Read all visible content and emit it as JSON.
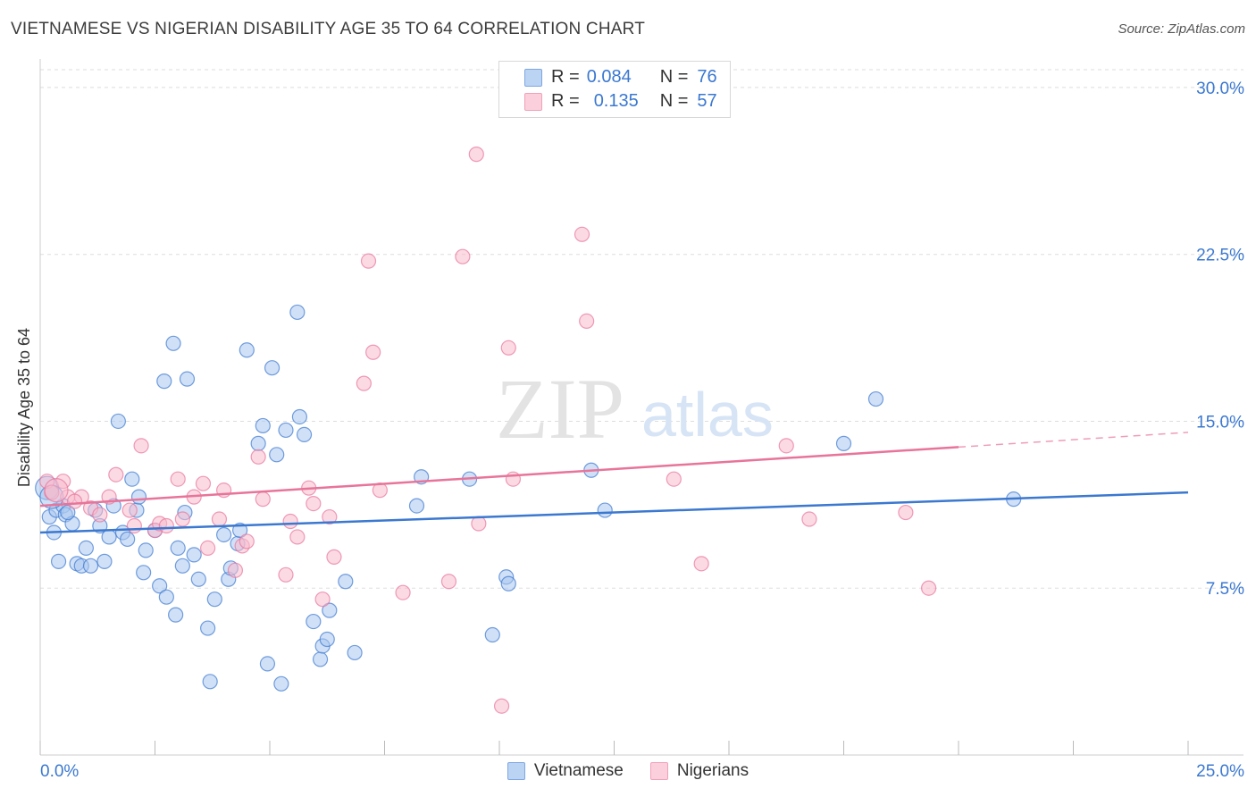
{
  "title": "VIETNAMESE VS NIGERIAN DISABILITY AGE 35 TO 64 CORRELATION CHART",
  "source": "Source: ZipAtlas.com",
  "watermark": {
    "zip": "ZIP",
    "atlas": "atlas"
  },
  "stats": {
    "row1": {
      "r_label": "R =",
      "r_value": "0.084",
      "n_label": "N =",
      "n_value": "76"
    },
    "row2": {
      "r_label": "R =",
      "r_value": "0.135",
      "n_label": "N =",
      "n_value": "57"
    }
  },
  "legend": {
    "series1": "Vietnamese",
    "series2": "Nigerians"
  },
  "chart_data": {
    "type": "scatter",
    "title": "VIETNAMESE VS NIGERIAN DISABILITY AGE 35 TO 64 CORRELATION CHART",
    "xlabel": "",
    "ylabel": "Disability Age 35 to 64",
    "xlim": [
      0,
      25
    ],
    "ylim": [
      0,
      30.8
    ],
    "x_tick_labels": [
      "0.0%",
      "25.0%"
    ],
    "y_ticks": [
      7.5,
      15.0,
      22.5,
      30.0
    ],
    "y_tick_labels": [
      "7.5%",
      "15.0%",
      "22.5%",
      "30.0%"
    ],
    "colors": {
      "blue": "#3b78d0",
      "blue_fill": "#a9c6ef",
      "pink": "#e8749a",
      "pink_fill": "#f7bccd",
      "tick_text": "#3b78d0"
    },
    "series": [
      {
        "name": "Vietnamese",
        "color": "#3b78d0",
        "fill": "#a9c6ef",
        "trend": {
          "x0": 0,
          "y0": 10.0,
          "x1": 25,
          "y1": 11.8,
          "dash_from": null
        },
        "points": [
          [
            0.2,
            10.7
          ],
          [
            0.3,
            10.0
          ],
          [
            0.35,
            11.0
          ],
          [
            0.4,
            8.7
          ],
          [
            0.5,
            11.2
          ],
          [
            0.55,
            10.8
          ],
          [
            0.7,
            10.4
          ],
          [
            0.8,
            8.6
          ],
          [
            0.9,
            8.5
          ],
          [
            1.0,
            9.3
          ],
          [
            1.1,
            8.5
          ],
          [
            1.2,
            11.0
          ],
          [
            1.3,
            10.3
          ],
          [
            1.4,
            8.7
          ],
          [
            1.5,
            9.8
          ],
          [
            1.6,
            11.2
          ],
          [
            1.7,
            15.0
          ],
          [
            1.8,
            10.0
          ],
          [
            1.9,
            9.7
          ],
          [
            2.0,
            12.4
          ],
          [
            2.1,
            11.0
          ],
          [
            2.15,
            11.6
          ],
          [
            2.25,
            8.2
          ],
          [
            2.3,
            9.2
          ],
          [
            2.5,
            10.1
          ],
          [
            2.6,
            7.6
          ],
          [
            2.7,
            16.8
          ],
          [
            2.75,
            7.1
          ],
          [
            2.9,
            18.5
          ],
          [
            2.95,
            6.3
          ],
          [
            3.0,
            9.3
          ],
          [
            3.1,
            8.5
          ],
          [
            3.15,
            10.9
          ],
          [
            3.2,
            16.9
          ],
          [
            3.35,
            9.0
          ],
          [
            3.45,
            7.9
          ],
          [
            3.65,
            5.7
          ],
          [
            3.7,
            3.3
          ],
          [
            3.8,
            7.0
          ],
          [
            4.0,
            9.9
          ],
          [
            4.1,
            7.9
          ],
          [
            4.15,
            8.4
          ],
          [
            4.3,
            9.5
          ],
          [
            4.35,
            10.1
          ],
          [
            4.5,
            18.2
          ],
          [
            4.75,
            14.0
          ],
          [
            4.85,
            14.8
          ],
          [
            4.95,
            4.1
          ],
          [
            5.05,
            17.4
          ],
          [
            5.15,
            13.5
          ],
          [
            5.25,
            3.2
          ],
          [
            5.35,
            14.6
          ],
          [
            5.6,
            19.9
          ],
          [
            5.65,
            15.2
          ],
          [
            5.75,
            14.4
          ],
          [
            5.95,
            6.0
          ],
          [
            6.1,
            4.3
          ],
          [
            6.15,
            4.9
          ],
          [
            6.25,
            5.2
          ],
          [
            6.3,
            6.5
          ],
          [
            6.65,
            7.8
          ],
          [
            6.85,
            4.6
          ],
          [
            8.2,
            11.2
          ],
          [
            8.3,
            12.5
          ],
          [
            9.35,
            12.4
          ],
          [
            9.85,
            5.4
          ],
          [
            10.15,
            8.0
          ],
          [
            10.2,
            7.7
          ],
          [
            12.0,
            12.8
          ],
          [
            12.3,
            11.0
          ],
          [
            17.5,
            14.0
          ],
          [
            18.2,
            16.0
          ],
          [
            21.2,
            11.5
          ],
          [
            0.15,
            12.0
          ],
          [
            0.25,
            11.6
          ],
          [
            0.6,
            10.9
          ]
        ]
      },
      {
        "name": "Nigerians",
        "color": "#e8749a",
        "fill": "#f7bccd",
        "trend": {
          "x0": 0,
          "y0": 11.2,
          "x1": 25,
          "y1": 14.5,
          "dash_from": 20.0
        },
        "points": [
          [
            0.15,
            12.3
          ],
          [
            0.25,
            11.8
          ],
          [
            0.5,
            12.3
          ],
          [
            0.6,
            11.6
          ],
          [
            0.9,
            11.6
          ],
          [
            1.1,
            11.1
          ],
          [
            1.3,
            10.8
          ],
          [
            1.5,
            11.6
          ],
          [
            1.65,
            12.6
          ],
          [
            1.95,
            11.0
          ],
          [
            2.05,
            10.3
          ],
          [
            2.2,
            13.9
          ],
          [
            2.5,
            10.1
          ],
          [
            2.6,
            10.4
          ],
          [
            2.75,
            10.3
          ],
          [
            3.0,
            12.4
          ],
          [
            3.1,
            10.6
          ],
          [
            3.35,
            11.6
          ],
          [
            3.55,
            12.2
          ],
          [
            3.65,
            9.3
          ],
          [
            3.9,
            10.6
          ],
          [
            4.0,
            11.9
          ],
          [
            4.25,
            8.3
          ],
          [
            4.4,
            9.4
          ],
          [
            4.5,
            9.6
          ],
          [
            4.75,
            13.4
          ],
          [
            4.85,
            11.5
          ],
          [
            5.35,
            8.1
          ],
          [
            5.45,
            10.5
          ],
          [
            5.6,
            9.8
          ],
          [
            5.85,
            12.0
          ],
          [
            5.95,
            11.3
          ],
          [
            6.15,
            7.0
          ],
          [
            6.3,
            10.7
          ],
          [
            6.4,
            8.9
          ],
          [
            7.05,
            16.7
          ],
          [
            7.15,
            22.2
          ],
          [
            7.25,
            18.1
          ],
          [
            7.4,
            11.9
          ],
          [
            7.9,
            7.3
          ],
          [
            8.9,
            7.8
          ],
          [
            9.2,
            22.4
          ],
          [
            9.55,
            10.4
          ],
          [
            9.5,
            27.0
          ],
          [
            10.05,
            2.2
          ],
          [
            10.2,
            18.3
          ],
          [
            10.3,
            12.4
          ],
          [
            11.8,
            23.4
          ],
          [
            11.9,
            19.5
          ],
          [
            13.8,
            12.4
          ],
          [
            14.4,
            8.6
          ],
          [
            16.25,
            13.9
          ],
          [
            16.75,
            10.6
          ],
          [
            18.85,
            10.9
          ],
          [
            19.35,
            7.5
          ],
          [
            0.35,
            11.9
          ],
          [
            0.75,
            11.4
          ]
        ]
      }
    ]
  }
}
